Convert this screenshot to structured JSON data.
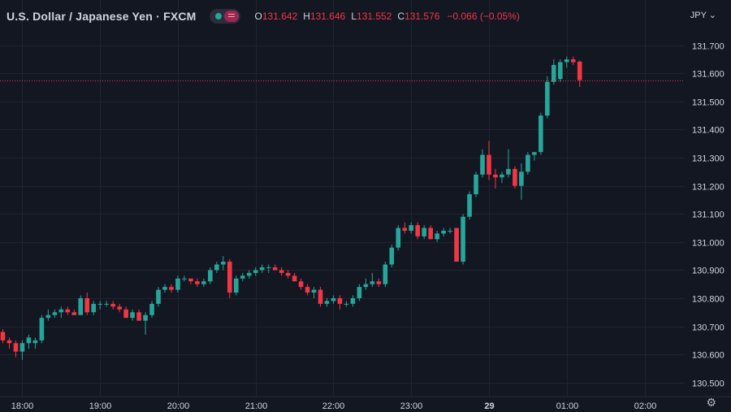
{
  "header": {
    "title": "U.S. Dollar / Japanese Yen · FXCM",
    "open_label": "O",
    "open": "131.642",
    "high_label": "H",
    "high": "131.646",
    "low_label": "L",
    "low": "131.552",
    "close_label": "C",
    "close": "131.576",
    "change": "−0.066 (−0.05%)"
  },
  "currency": "JPY",
  "icons": {
    "settings": "gear-icon",
    "currency_menu": "chevron-down-icon"
  },
  "colors": {
    "background": "#131722",
    "up": "#26a69a",
    "down": "#f23645",
    "grid": "#1f2430",
    "text": "#d1d4dc"
  },
  "chart_data": {
    "type": "candlestick",
    "symbol": "USDJPY",
    "last_price": "131.576",
    "ylim": [
      130.45,
      131.76
    ],
    "y_ticks": [
      130.5,
      130.6,
      130.7,
      130.8,
      130.9,
      131.0,
      131.1,
      131.2,
      131.3,
      131.4,
      131.5,
      131.6,
      131.7
    ],
    "x_ticks": [
      {
        "label": "18:00",
        "bar": 3
      },
      {
        "label": "19:00",
        "bar": 15
      },
      {
        "label": "20:00",
        "bar": 27
      },
      {
        "label": "21:00",
        "bar": 39
      },
      {
        "label": "22:00",
        "bar": 51
      },
      {
        "label": "23:00",
        "bar": 63
      },
      {
        "label": "29",
        "bar": 75
      },
      {
        "label": "01:00",
        "bar": 87
      },
      {
        "label": "02:00",
        "bar": 99
      }
    ],
    "grid": true,
    "candles": [
      [
        130.68,
        130.69,
        130.64,
        130.65
      ],
      [
        130.65,
        130.66,
        130.62,
        130.64
      ],
      [
        130.64,
        130.65,
        130.59,
        130.61
      ],
      [
        130.61,
        130.65,
        130.58,
        130.64
      ],
      [
        130.64,
        130.67,
        130.62,
        130.66
      ],
      [
        130.64,
        130.66,
        130.62,
        130.65
      ],
      [
        130.65,
        130.74,
        130.64,
        130.73
      ],
      [
        130.73,
        130.76,
        130.72,
        130.74
      ],
      [
        130.74,
        130.76,
        130.73,
        130.75
      ],
      [
        130.75,
        130.77,
        130.73,
        130.76
      ],
      [
        130.76,
        130.77,
        130.74,
        130.75
      ],
      [
        130.75,
        130.76,
        130.74,
        130.74
      ],
      [
        130.74,
        130.81,
        130.74,
        130.8
      ],
      [
        130.8,
        130.82,
        130.74,
        130.75
      ],
      [
        130.75,
        130.79,
        130.74,
        130.78
      ],
      [
        130.78,
        130.79,
        130.76,
        130.78
      ],
      [
        130.78,
        130.79,
        130.77,
        130.78
      ],
      [
        130.78,
        130.79,
        130.76,
        130.77
      ],
      [
        130.77,
        130.78,
        130.75,
        130.76
      ],
      [
        130.76,
        130.77,
        130.73,
        130.73
      ],
      [
        130.73,
        130.76,
        130.72,
        130.75
      ],
      [
        130.75,
        130.76,
        130.72,
        130.72
      ],
      [
        130.72,
        130.75,
        130.67,
        130.74
      ],
      [
        130.74,
        130.79,
        130.73,
        130.78
      ],
      [
        130.78,
        130.84,
        130.77,
        130.83
      ],
      [
        130.83,
        130.85,
        130.82,
        130.84
      ],
      [
        130.84,
        130.85,
        130.82,
        130.83
      ],
      [
        130.83,
        130.88,
        130.82,
        130.87
      ],
      [
        130.87,
        130.88,
        130.86,
        130.87
      ],
      [
        130.87,
        130.87,
        130.85,
        130.86
      ],
      [
        130.86,
        130.87,
        130.84,
        130.85
      ],
      [
        130.85,
        130.87,
        130.84,
        130.86
      ],
      [
        130.86,
        130.91,
        130.85,
        130.9
      ],
      [
        130.9,
        130.93,
        130.89,
        130.92
      ],
      [
        130.92,
        130.95,
        130.9,
        130.93
      ],
      [
        130.93,
        130.94,
        130.8,
        130.82
      ],
      [
        130.82,
        130.88,
        130.81,
        130.87
      ],
      [
        130.87,
        130.89,
        130.86,
        130.88
      ],
      [
        130.88,
        130.9,
        130.87,
        130.89
      ],
      [
        130.89,
        130.91,
        130.88,
        130.9
      ],
      [
        130.9,
        130.92,
        130.89,
        130.91
      ],
      [
        130.91,
        130.92,
        130.89,
        130.91
      ],
      [
        130.91,
        130.92,
        130.9,
        130.9
      ],
      [
        130.9,
        130.91,
        130.88,
        130.89
      ],
      [
        130.89,
        130.9,
        130.87,
        130.88
      ],
      [
        130.88,
        130.89,
        130.86,
        130.86
      ],
      [
        130.86,
        130.87,
        130.83,
        130.84
      ],
      [
        130.84,
        130.85,
        130.81,
        130.82
      ],
      [
        130.82,
        130.84,
        130.8,
        130.83
      ],
      [
        130.83,
        130.84,
        130.77,
        130.78
      ],
      [
        130.78,
        130.8,
        130.77,
        130.79
      ],
      [
        130.79,
        130.81,
        130.78,
        130.8
      ],
      [
        130.8,
        130.81,
        130.76,
        130.78
      ],
      [
        130.78,
        130.79,
        130.77,
        130.78
      ],
      [
        130.78,
        130.81,
        130.77,
        130.8
      ],
      [
        130.8,
        130.85,
        130.79,
        130.84
      ],
      [
        130.84,
        130.87,
        130.83,
        130.85
      ],
      [
        130.85,
        130.89,
        130.84,
        130.86
      ],
      [
        130.86,
        130.87,
        130.84,
        130.85
      ],
      [
        130.85,
        130.93,
        130.84,
        130.92
      ],
      [
        130.92,
        130.99,
        130.91,
        130.98
      ],
      [
        130.98,
        131.06,
        130.97,
        131.05
      ],
      [
        131.05,
        131.07,
        131.03,
        131.04
      ],
      [
        131.04,
        131.07,
        131.03,
        131.06
      ],
      [
        131.06,
        131.07,
        131.01,
        131.02
      ],
      [
        131.02,
        131.06,
        131.01,
        131.05
      ],
      [
        131.05,
        131.06,
        131.01,
        131.01
      ],
      [
        131.01,
        131.04,
        131.0,
        131.03
      ],
      [
        131.03,
        131.05,
        131.02,
        131.04
      ],
      [
        131.04,
        131.05,
        131.03,
        131.04
      ],
      [
        131.05,
        131.05,
        130.93,
        130.93
      ],
      [
        130.93,
        131.1,
        130.92,
        131.09
      ],
      [
        131.09,
        131.18,
        131.08,
        131.17
      ],
      [
        131.17,
        131.25,
        131.16,
        131.24
      ],
      [
        131.24,
        131.33,
        131.23,
        131.31
      ],
      [
        131.31,
        131.36,
        131.22,
        131.24
      ],
      [
        131.24,
        131.26,
        131.19,
        131.23
      ],
      [
        131.23,
        131.25,
        131.21,
        131.24
      ],
      [
        131.24,
        131.33,
        131.23,
        131.26
      ],
      [
        131.26,
        131.27,
        131.19,
        131.2
      ],
      [
        131.2,
        131.28,
        131.15,
        131.25
      ],
      [
        131.25,
        131.32,
        131.24,
        131.31
      ],
      [
        131.31,
        131.32,
        131.29,
        131.32
      ],
      [
        131.32,
        131.46,
        131.31,
        131.45
      ],
      [
        131.45,
        131.59,
        131.44,
        131.57
      ],
      [
        131.57,
        131.65,
        131.56,
        131.63
      ],
      [
        131.58,
        131.65,
        131.57,
        131.64
      ],
      [
        131.64,
        131.66,
        131.62,
        131.65
      ],
      [
        131.65,
        131.66,
        131.63,
        131.64
      ],
      [
        131.642,
        131.646,
        131.552,
        131.576
      ]
    ]
  }
}
